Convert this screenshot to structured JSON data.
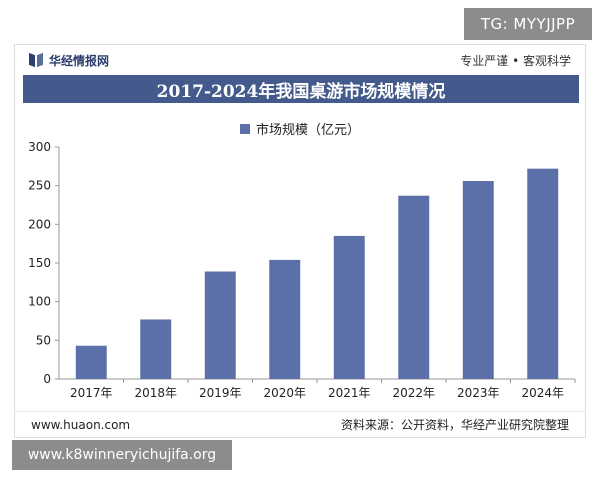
{
  "overlay_top_right": "TG: MYYJJPP",
  "overlay_bottom_left": "www.k8winneryichujifa.org",
  "brand": {
    "name": "华经情报网",
    "slogan": "专业严谨 • 客观科学"
  },
  "footer": {
    "website": "www.huaon.com",
    "source": "资料来源：公开资料，华经产业研究院整理"
  },
  "chart_data": {
    "type": "bar",
    "title": "2017-2024年我国桌游市场规模情况",
    "categories": [
      "2017年",
      "2018年",
      "2019年",
      "2020年",
      "2021年",
      "2022年",
      "2023年",
      "2024年"
    ],
    "series": [
      {
        "name": "市场规模（亿元）",
        "values": [
          43,
          77,
          139,
          154,
          185,
          237,
          256,
          272
        ]
      }
    ],
    "ylim": [
      0,
      300
    ],
    "yticks": [
      0,
      50,
      100,
      150,
      200,
      250,
      300
    ],
    "grid": false,
    "legend_position": "top-center",
    "bar_color": "#5b6fa8"
  }
}
